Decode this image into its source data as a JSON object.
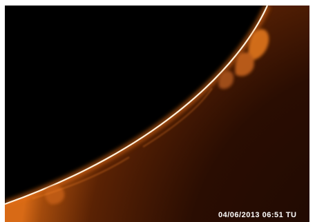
{
  "image": {
    "subject": "solar limb with prominences",
    "colors": {
      "sky": "#000000",
      "disk_bright": "#c2590f",
      "disk_dark": "#2a0d02",
      "limb": "#fff3e0",
      "prominence": "#e0761c",
      "frame": "#ffffff"
    }
  },
  "overlay": {
    "timestamp": "04/06/2013 06:51 TU"
  }
}
